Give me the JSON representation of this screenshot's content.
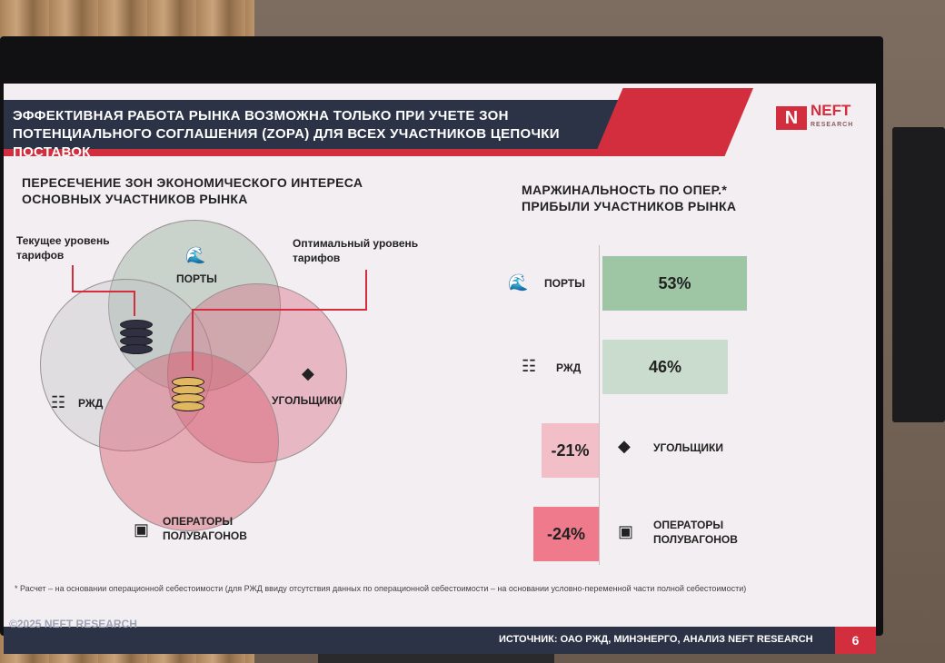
{
  "header": {
    "title": "ЭФФЕКТИВНАЯ РАБОТА РЫНКА ВОЗМОЖНА ТОЛЬКО ПРИ УЧЕТЕ ЗОН ПОТЕНЦИАЛЬНОГО СОГЛАШЕНИЯ (ZOPA) ДЛЯ ВСЕХ УЧАСТНИКОВ ЦЕПОЧКИ ПОСТАВОК",
    "logo_mark": "N",
    "logo_text": "NEFT",
    "logo_sub": "RESEARCH"
  },
  "venn": {
    "subtitle": "ПЕРЕСЕЧЕНИЕ ЗОН ЭКОНОМИЧЕСКОГО ИНТЕРЕСА ОСНОВНЫХ УЧАСТНИКОВ РЫНКА",
    "current_tariff": "Текущее уровень тарифов",
    "optimal_tariff": "Оптимальный уровень тарифов",
    "ports": "ПОРТЫ",
    "rzd": "РЖД",
    "coal": "УГОЛЬЩИКИ",
    "operators": "ОПЕРАТОРЫ ПОЛУВАГОНОВ"
  },
  "margin": {
    "subtitle": "МАРЖИНАЛЬНОСТЬ ПО ОПЕР.* ПРИБЫЛИ УЧАСТНИКОВ РЫНКА"
  },
  "chart_data": {
    "type": "bar",
    "orientation": "horizontal",
    "title": "МАРЖИНАЛЬНОСТЬ ПО ОПЕР.* ПРИБЫЛИ УЧАСТНИКОВ РЫНКА",
    "categories": [
      "ПОРТЫ",
      "РЖД",
      "УГОЛЬЩИКИ",
      "ОПЕРАТОРЫ ПОЛУВАГОНОВ"
    ],
    "values": [
      53,
      46,
      -21,
      -24
    ],
    "labels": [
      "53%",
      "46%",
      "-21%",
      "-24%"
    ],
    "colors": [
      "#9ec5a4",
      "#c9dccd",
      "#f2bfc8",
      "#ee7a8c"
    ],
    "xlim": [
      -30,
      60
    ]
  },
  "footer": {
    "footnote": "* Расчет – на основании операционной себестоимости (для РЖД ввиду отсутствия данных по операционной себестоимости – на основании условно-переменной части полной себестоимости)",
    "copyright": "©2025 NEFT RESEARCH",
    "source": "ИСТОЧНИК: ОАО РЖД, МИНЭНЕРГО, АНАЛИЗ NEFT RESEARCH",
    "page": "6"
  },
  "icons": [
    "wave-icon",
    "railway-icon",
    "coal-icon",
    "wagon-icon",
    "coins-icon"
  ]
}
